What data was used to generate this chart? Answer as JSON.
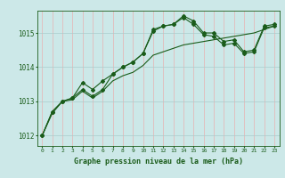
{
  "title": "Graphe pression niveau de la mer (hPa)",
  "bg_color": "#cce8e8",
  "plot_bg_color": "#cce8e8",
  "grid_color_v": "#e8b0b0",
  "grid_color_h": "#aacccc",
  "line_color": "#1a5c1a",
  "x_ticks": [
    0,
    1,
    2,
    3,
    4,
    5,
    6,
    7,
    8,
    9,
    10,
    11,
    12,
    13,
    14,
    15,
    16,
    17,
    18,
    19,
    20,
    21,
    22,
    23
  ],
  "y_ticks": [
    1012,
    1013,
    1014,
    1015
  ],
  "ylim": [
    1011.7,
    1015.65
  ],
  "xlim": [
    -0.5,
    23.5
  ],
  "series1": [
    1012.0,
    1012.7,
    1013.0,
    1013.1,
    1013.55,
    1013.35,
    1013.6,
    1013.8,
    1014.0,
    1014.15,
    1014.4,
    1015.1,
    1015.2,
    1015.25,
    1015.5,
    1015.35,
    1015.0,
    1015.0,
    1014.75,
    1014.8,
    1014.45,
    1014.5,
    1015.2,
    1015.25
  ],
  "series2": [
    1012.0,
    1012.7,
    1013.0,
    1013.1,
    1013.35,
    1013.15,
    1013.35,
    1013.8,
    1014.0,
    1014.15,
    1014.4,
    1015.05,
    1015.2,
    1015.25,
    1015.45,
    1015.25,
    1014.95,
    1014.9,
    1014.65,
    1014.7,
    1014.4,
    1014.45,
    1015.15,
    1015.2
  ],
  "series3": [
    1012.0,
    1012.65,
    1013.0,
    1013.05,
    1013.3,
    1013.1,
    1013.3,
    1013.6,
    1013.75,
    1013.85,
    1014.05,
    1014.35,
    1014.45,
    1014.55,
    1014.65,
    1014.7,
    1014.75,
    1014.8,
    1014.85,
    1014.9,
    1014.95,
    1015.0,
    1015.1,
    1015.2
  ]
}
